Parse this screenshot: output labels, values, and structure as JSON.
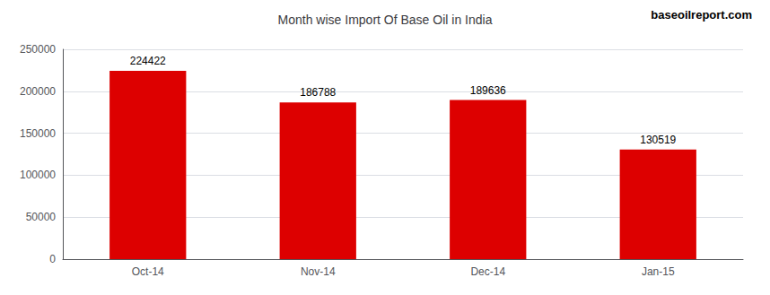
{
  "chart_data": {
    "type": "bar",
    "title": "Month wise Import Of Base Oil in India",
    "categories": [
      "Oct-14",
      "Nov-14",
      "Dec-14",
      "Jan-15"
    ],
    "values": [
      224422,
      186788,
      189636,
      130519
    ],
    "color": "#dd0000",
    "ylim": [
      0,
      250000
    ],
    "yticks": [
      0,
      50000,
      100000,
      150000,
      200000,
      250000
    ],
    "grid": true,
    "data_labels": true,
    "annotations": [
      "baseoilreport.com"
    ]
  }
}
